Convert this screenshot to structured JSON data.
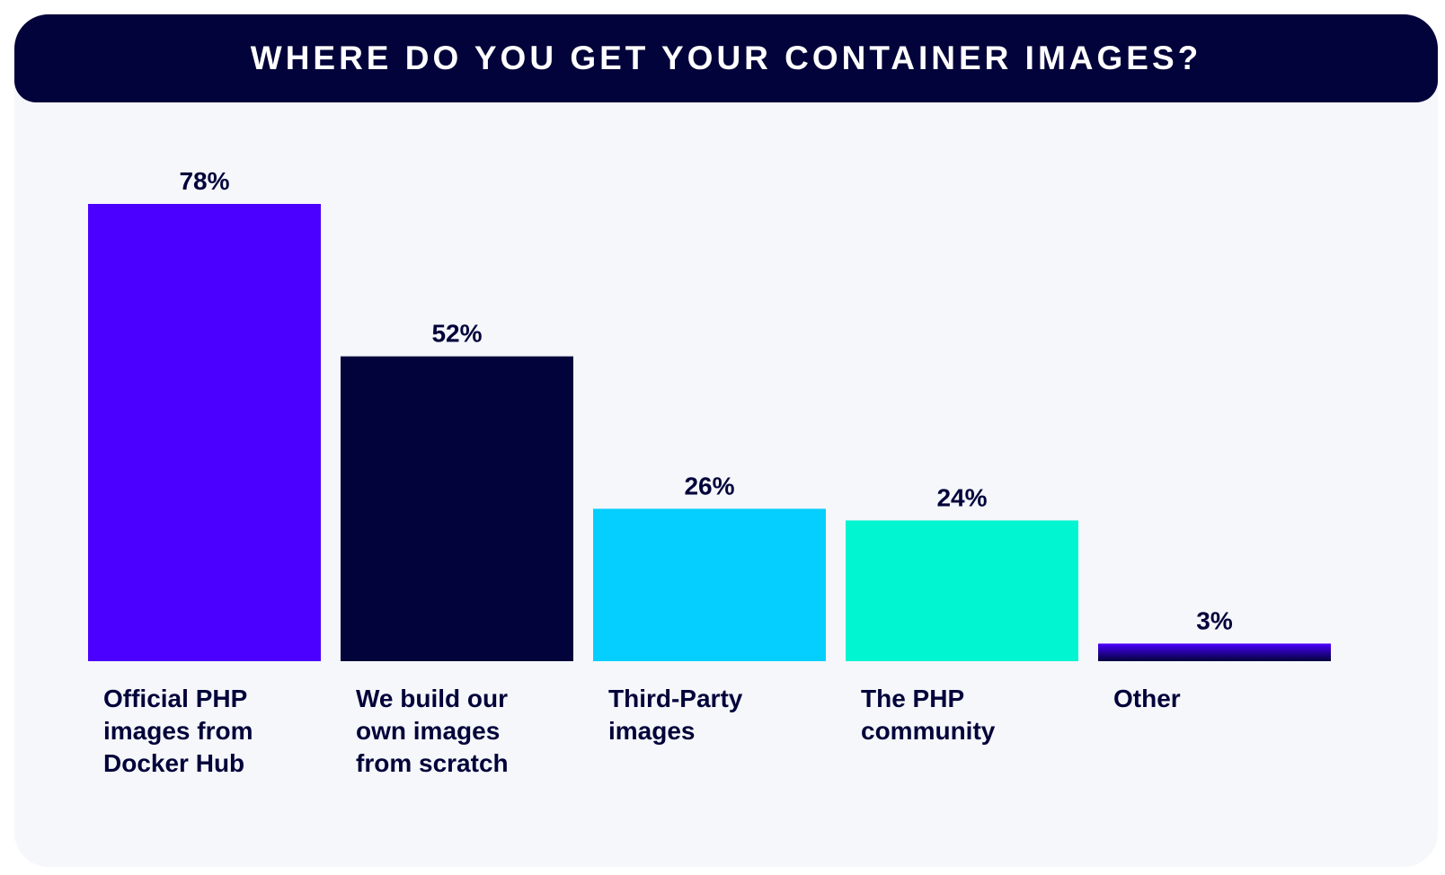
{
  "header": {
    "title": "WHERE DO YOU GET YOUR CONTAINER IMAGES?"
  },
  "chart_data": {
    "type": "bar",
    "title": "WHERE DO YOU GET YOUR CONTAINER IMAGES?",
    "xlabel": "",
    "ylabel": "",
    "ylim": [
      0,
      78
    ],
    "grid": false,
    "categories": [
      [
        "Official PHP",
        "images from",
        "Docker Hub"
      ],
      [
        "We build our",
        "own images",
        "from scratch"
      ],
      [
        "Third-Party",
        "images"
      ],
      [
        "The PHP",
        "community"
      ],
      [
        "Other"
      ]
    ],
    "values": [
      78,
      52,
      26,
      24,
      3
    ],
    "value_labels": [
      "78%",
      "52%",
      "26%",
      "24%",
      "3%"
    ],
    "colors": [
      "#4b00ff",
      "#02033a",
      "#05cfff",
      "#00f5d0",
      "#3a06c8"
    ]
  }
}
